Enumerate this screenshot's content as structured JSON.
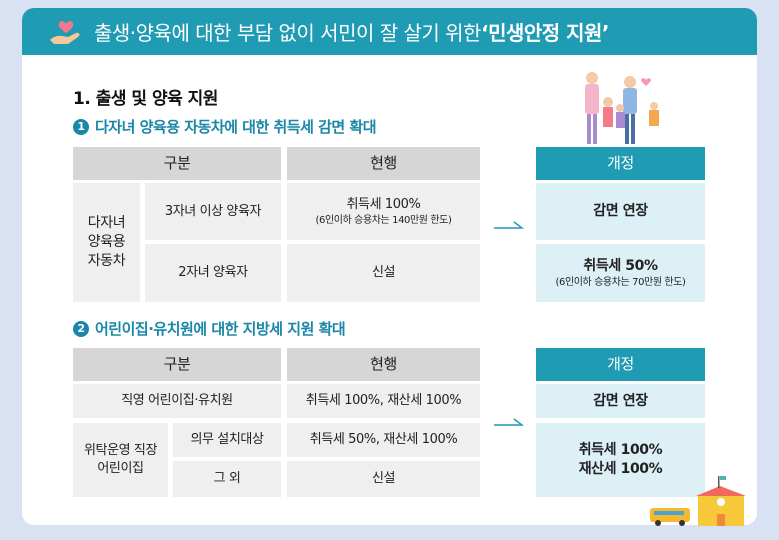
{
  "header": {
    "title_prefix": "출생·양육에 대한 부담 없이 서민이 잘 살기 위한 ",
    "title_bold": "‘민생안정 지원’",
    "icon": "heart-hand-icon"
  },
  "section": {
    "title": "1. 출생 및 양육 지원"
  },
  "s1": {
    "num": "1",
    "title": "다자녀 양육용 자동차에 대한 취득세 감면 확대",
    "col_category": "구분",
    "col_current": "현행",
    "col_revised": "개정",
    "group": "다자녀 양육용 자동차",
    "rows": [
      {
        "category": "3자녀 이상 양육자",
        "current": "취득세 100%",
        "current_note": "(6인이하 승용차는 140만원 한도)",
        "revised": "감면 연장",
        "revised_note": ""
      },
      {
        "category": "2자녀 양육자",
        "current": "신설",
        "current_note": "",
        "revised": "취득세 50%",
        "revised_note": "(6인이하 승용차는 70만원 한도)"
      }
    ]
  },
  "s2": {
    "num": "2",
    "title": "어린이집·유치원에 대한 지방세 지원 확대",
    "col_category": "구분",
    "col_current": "현행",
    "col_revised": "개정",
    "row1": {
      "category": "직영 어린이집·유치원",
      "current": "취득세 100%, 재산세 100%",
      "revised": "감면 연장"
    },
    "group": "위탁운영 직장어린이집",
    "row2": {
      "category": "의무 설치대상",
      "current": "취득세 50%, 재산세 100%"
    },
    "row3": {
      "category": "그 외",
      "current": "신설"
    },
    "revised2_line1": "취득세 100%",
    "revised2_line2": "재산세 100%"
  }
}
